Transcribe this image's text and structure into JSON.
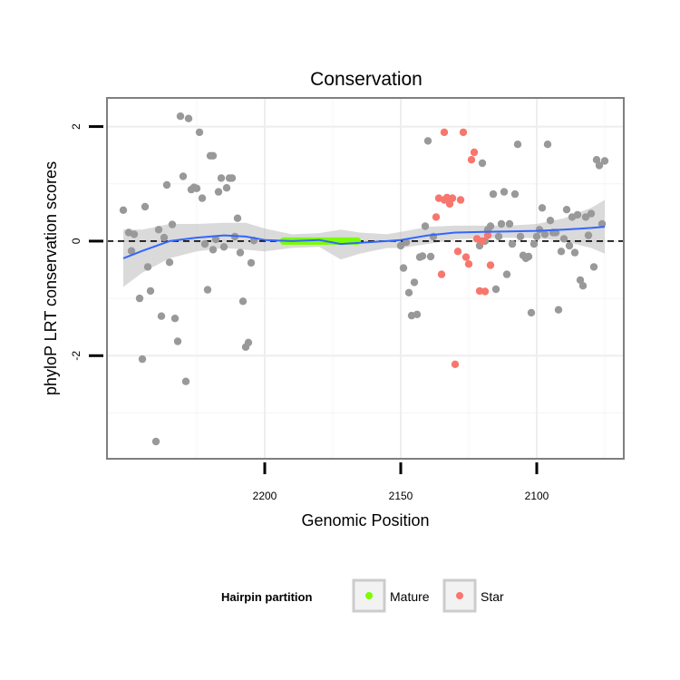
{
  "chart_data": {
    "type": "scatter",
    "title": "Conservation",
    "xlabel": "Genomic Position",
    "ylabel": "phyloP LRT conservation scores",
    "x_reversed": true,
    "xlim": [
      2258,
      2068
    ],
    "ylim": [
      -3.8,
      2.5
    ],
    "x_ticks": [
      2200,
      2150,
      2100
    ],
    "y_ticks": [
      2,
      0,
      -2
    ],
    "reference_line": {
      "y": 0,
      "style": "dashed"
    },
    "legend": {
      "title": "Hairpin partition",
      "position": "bottom",
      "entries": [
        {
          "label": "Mature",
          "color": "#7CFC00"
        },
        {
          "label": "Star",
          "color": "#F8766D"
        }
      ]
    },
    "colors": {
      "other": "#999999",
      "Mature": "#7CFC00",
      "Star": "#F8766D",
      "smooth_line": "#3366FF",
      "ribbon": "#BBBBBB",
      "panel_border": "#7F7F7F"
    },
    "series": [
      {
        "partition": "other",
        "color": "#999999",
        "points": [
          [
            2252,
            0.54
          ],
          [
            2250,
            0.15
          ],
          [
            2249,
            -0.17
          ],
          [
            2248,
            0.12
          ],
          [
            2246,
            -1.0
          ],
          [
            2245,
            -2.06
          ],
          [
            2244,
            0.6
          ],
          [
            2243,
            -0.45
          ],
          [
            2242,
            -0.87
          ],
          [
            2240,
            -3.5
          ],
          [
            2239,
            0.2
          ],
          [
            2238,
            -1.31
          ],
          [
            2237,
            0.06
          ],
          [
            2236,
            0.98
          ],
          [
            2235,
            -0.37
          ],
          [
            2234,
            0.29
          ],
          [
            2233,
            -1.35
          ],
          [
            2232,
            -1.75
          ],
          [
            2231,
            2.18
          ],
          [
            2230,
            1.13
          ],
          [
            2229,
            -2.45
          ],
          [
            2228,
            2.14
          ],
          [
            2227,
            0.9
          ],
          [
            2226,
            0.94
          ],
          [
            2225,
            0.92
          ],
          [
            2224,
            1.9
          ],
          [
            2223,
            0.75
          ],
          [
            2222,
            -0.05
          ],
          [
            2221,
            -0.85
          ],
          [
            2220,
            1.49
          ],
          [
            2219,
            1.49
          ],
          [
            2219,
            -0.15
          ],
          [
            2218,
            0.03
          ],
          [
            2217,
            0.86
          ],
          [
            2216,
            1.1
          ],
          [
            2215,
            -0.1
          ],
          [
            2214,
            0.93
          ],
          [
            2213,
            1.1
          ],
          [
            2212,
            1.1
          ],
          [
            2211,
            0.08
          ],
          [
            2210,
            0.4
          ],
          [
            2209,
            -0.2
          ],
          [
            2208,
            -1.05
          ],
          [
            2207,
            -1.85
          ],
          [
            2206,
            -1.77
          ],
          [
            2205,
            -0.38
          ],
          [
            2204,
            0.01
          ],
          [
            2150,
            -0.08
          ],
          [
            2149,
            -0.47
          ],
          [
            2148,
            -0.02
          ],
          [
            2147,
            -0.9
          ],
          [
            2146,
            -1.3
          ],
          [
            2145,
            -0.72
          ],
          [
            2144,
            -1.28
          ],
          [
            2143,
            -0.28
          ],
          [
            2142,
            -0.26
          ],
          [
            2141,
            0.26
          ],
          [
            2140,
            1.75
          ],
          [
            2139,
            -0.27
          ],
          [
            2138,
            0.08
          ],
          [
            2121,
            -0.08
          ],
          [
            2120,
            1.36
          ],
          [
            2119,
            0.0
          ],
          [
            2118,
            0.2
          ],
          [
            2117,
            0.26
          ],
          [
            2116,
            0.82
          ],
          [
            2115,
            -0.84
          ],
          [
            2114,
            0.08
          ],
          [
            2113,
            0.3
          ],
          [
            2112,
            0.86
          ],
          [
            2111,
            -0.58
          ],
          [
            2110,
            0.3
          ],
          [
            2109,
            -0.05
          ],
          [
            2108,
            0.82
          ],
          [
            2107,
            1.69
          ],
          [
            2106,
            0.08
          ],
          [
            2105,
            -0.25
          ],
          [
            2104,
            -0.3
          ],
          [
            2103,
            -0.27
          ],
          [
            2102,
            -1.25
          ],
          [
            2101,
            -0.05
          ],
          [
            2100,
            0.08
          ],
          [
            2099,
            0.2
          ],
          [
            2098,
            0.58
          ],
          [
            2097,
            0.12
          ],
          [
            2096,
            1.69
          ],
          [
            2095,
            0.36
          ],
          [
            2094,
            0.15
          ],
          [
            2093,
            0.15
          ],
          [
            2092,
            -1.2
          ],
          [
            2091,
            -0.18
          ],
          [
            2090,
            0.04
          ],
          [
            2089,
            0.55
          ],
          [
            2088,
            -0.08
          ],
          [
            2087,
            0.42
          ],
          [
            2086,
            -0.2
          ],
          [
            2085,
            0.46
          ],
          [
            2084,
            -0.68
          ],
          [
            2083,
            -0.78
          ],
          [
            2082,
            0.42
          ],
          [
            2081,
            0.1
          ],
          [
            2080,
            0.48
          ],
          [
            2079,
            -0.45
          ],
          [
            2078,
            1.42
          ],
          [
            2077,
            1.32
          ],
          [
            2076,
            0.3
          ],
          [
            2075,
            1.4
          ]
        ]
      },
      {
        "partition": "Mature",
        "color": "#7CFC00",
        "points": [
          [
            2193,
            0.0
          ],
          [
            2192,
            0.0
          ],
          [
            2191,
            0.0
          ],
          [
            2190,
            0.0
          ],
          [
            2189,
            0.0
          ],
          [
            2188,
            0.0
          ],
          [
            2187,
            0.0
          ],
          [
            2186,
            0.0
          ],
          [
            2185,
            0.0
          ],
          [
            2184,
            0.0
          ],
          [
            2183,
            0.0
          ],
          [
            2182,
            0.0
          ],
          [
            2181,
            0.0
          ],
          [
            2180,
            0.0
          ],
          [
            2179,
            0.0
          ],
          [
            2178,
            0.0
          ],
          [
            2177,
            0.0
          ],
          [
            2176,
            0.0
          ],
          [
            2175,
            0.0
          ],
          [
            2174,
            0.0
          ],
          [
            2173,
            0.0
          ],
          [
            2172,
            0.0
          ],
          [
            2171,
            0.0
          ],
          [
            2170,
            0.0
          ],
          [
            2169,
            0.0
          ],
          [
            2168,
            0.0
          ],
          [
            2167,
            0.0
          ],
          [
            2166,
            0.0
          ]
        ]
      },
      {
        "partition": "Star",
        "color": "#F8766D",
        "points": [
          [
            2137,
            0.42
          ],
          [
            2136,
            0.75
          ],
          [
            2135,
            -0.58
          ],
          [
            2134,
            1.9
          ],
          [
            2134,
            0.72
          ],
          [
            2133,
            0.76
          ],
          [
            2132,
            0.65
          ],
          [
            2131,
            0.75
          ],
          [
            2130,
            -2.15
          ],
          [
            2129,
            -0.18
          ],
          [
            2128,
            0.72
          ],
          [
            2127,
            1.9
          ],
          [
            2126,
            -0.28
          ],
          [
            2125,
            -0.4
          ],
          [
            2124,
            1.42
          ],
          [
            2123,
            1.55
          ],
          [
            2122,
            0.04
          ],
          [
            2121,
            -0.87
          ],
          [
            2120,
            0.0
          ],
          [
            2119,
            -0.88
          ],
          [
            2118,
            0.1
          ],
          [
            2117,
            -0.42
          ]
        ]
      }
    ],
    "smooth_line": [
      [
        2252,
        -0.3
      ],
      [
        2245,
        -0.17
      ],
      [
        2235,
        0.0
      ],
      [
        2225,
        0.06
      ],
      [
        2215,
        0.1
      ],
      [
        2207,
        0.08
      ],
      [
        2200,
        0.02
      ],
      [
        2190,
        0.0
      ],
      [
        2180,
        0.02
      ],
      [
        2172,
        -0.05
      ],
      [
        2165,
        -0.03
      ],
      [
        2155,
        0.0
      ],
      [
        2150,
        0.02
      ],
      [
        2140,
        0.1
      ],
      [
        2130,
        0.15
      ],
      [
        2120,
        0.16
      ],
      [
        2110,
        0.17
      ],
      [
        2100,
        0.18
      ],
      [
        2090,
        0.2
      ],
      [
        2080,
        0.23
      ],
      [
        2075,
        0.25
      ]
    ],
    "ribbon": [
      [
        2252,
        -0.8,
        0.2
      ],
      [
        2245,
        -0.55,
        0.2
      ],
      [
        2235,
        -0.3,
        0.3
      ],
      [
        2225,
        -0.18,
        0.3
      ],
      [
        2215,
        -0.12,
        0.32
      ],
      [
        2207,
        -0.15,
        0.32
      ],
      [
        2200,
        -0.18,
        0.22
      ],
      [
        2190,
        -0.12,
        0.12
      ],
      [
        2180,
        -0.1,
        0.14
      ],
      [
        2172,
        -0.32,
        0.2
      ],
      [
        2165,
        -0.22,
        0.15
      ],
      [
        2155,
        -0.12,
        0.12
      ],
      [
        2150,
        -0.12,
        0.16
      ],
      [
        2140,
        -0.05,
        0.25
      ],
      [
        2130,
        0.03,
        0.27
      ],
      [
        2120,
        0.05,
        0.27
      ],
      [
        2110,
        0.06,
        0.27
      ],
      [
        2100,
        0.05,
        0.3
      ],
      [
        2090,
        0.0,
        0.4
      ],
      [
        2080,
        -0.12,
        0.58
      ],
      [
        2075,
        -0.22,
        0.72
      ]
    ]
  }
}
